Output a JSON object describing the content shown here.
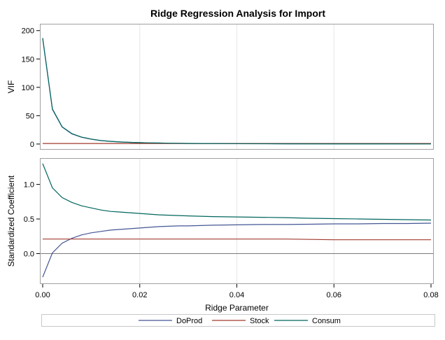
{
  "title": "Ridge Regression Analysis for Import",
  "chart_data": [
    {
      "type": "line",
      "panel": "vif",
      "ylabel": "VIF",
      "xlim": [
        0,
        0.08
      ],
      "ylim": [
        -10,
        212
      ],
      "yticks": [
        0,
        50,
        100,
        150,
        200
      ],
      "x": [
        0,
        0.002,
        0.004,
        0.006,
        0.008,
        0.01,
        0.012,
        0.014,
        0.016,
        0.018,
        0.02,
        0.022,
        0.024,
        0.026,
        0.028,
        0.03,
        0.04,
        0.05,
        0.06,
        0.07,
        0.08
      ],
      "series": [
        {
          "name": "DoProd",
          "color": "#445694",
          "values": [
            186,
            61,
            30,
            18,
            12,
            8.5,
            6,
            4.6,
            3.6,
            2.9,
            2.4,
            2.0,
            1.7,
            1.4,
            1.2,
            1.0,
            0.6,
            0.4,
            0.3,
            0.25,
            0.2
          ]
        },
        {
          "name": "Stock",
          "color": "#A23A2E",
          "values": [
            1.0,
            1.0,
            1.0,
            1.0,
            1.0,
            1.0,
            1.0,
            1.0,
            1.0,
            1.0,
            1.0,
            1.0,
            1.0,
            1.0,
            1.0,
            1.0,
            1.0,
            1.0,
            1.0,
            1.0,
            1.0
          ]
        },
        {
          "name": "Consum",
          "color": "#01665E",
          "values": [
            187,
            62,
            30.5,
            18.5,
            12.3,
            8.8,
            6.2,
            4.8,
            3.7,
            3.0,
            2.5,
            2.1,
            1.8,
            1.5,
            1.3,
            1.1,
            0.7,
            0.5,
            0.35,
            0.3,
            0.25
          ]
        }
      ]
    },
    {
      "type": "line",
      "panel": "coef",
      "ylabel": "Standardized Coefficient",
      "xlabel": "Ridge Parameter",
      "xlim": [
        0,
        0.08
      ],
      "ylim": [
        -0.44,
        1.38
      ],
      "yticks": [
        0.0,
        0.5,
        1.0
      ],
      "xticks": [
        0.0,
        0.02,
        0.04,
        0.06,
        0.08
      ],
      "reference_line_y": 0,
      "x": [
        0,
        0.002,
        0.004,
        0.006,
        0.008,
        0.01,
        0.012,
        0.014,
        0.016,
        0.018,
        0.02,
        0.022,
        0.024,
        0.026,
        0.028,
        0.03,
        0.035,
        0.04,
        0.045,
        0.05,
        0.055,
        0.06,
        0.065,
        0.07,
        0.075,
        0.08
      ],
      "series": [
        {
          "name": "DoProd",
          "color": "#445694",
          "values": [
            -0.34,
            0.01,
            0.15,
            0.22,
            0.27,
            0.3,
            0.32,
            0.34,
            0.35,
            0.36,
            0.37,
            0.38,
            0.39,
            0.395,
            0.4,
            0.4,
            0.41,
            0.415,
            0.42,
            0.42,
            0.425,
            0.43,
            0.43,
            0.435,
            0.435,
            0.44
          ]
        },
        {
          "name": "Stock",
          "color": "#A23A2E",
          "values": [
            0.21,
            0.21,
            0.21,
            0.21,
            0.21,
            0.21,
            0.21,
            0.21,
            0.21,
            0.21,
            0.21,
            0.21,
            0.21,
            0.21,
            0.21,
            0.21,
            0.21,
            0.21,
            0.21,
            0.21,
            0.205,
            0.2,
            0.2,
            0.2,
            0.2,
            0.2
          ]
        },
        {
          "name": "Consum",
          "color": "#01665E",
          "values": [
            1.3,
            0.95,
            0.81,
            0.74,
            0.69,
            0.66,
            0.63,
            0.61,
            0.6,
            0.59,
            0.58,
            0.57,
            0.56,
            0.555,
            0.55,
            0.545,
            0.535,
            0.53,
            0.525,
            0.52,
            0.51,
            0.505,
            0.5,
            0.495,
            0.49,
            0.485
          ]
        }
      ]
    }
  ],
  "legend": {
    "placement": "bottom",
    "items": [
      {
        "name": "DoProd",
        "color": "#445694"
      },
      {
        "name": "Stock",
        "color": "#A23A2E"
      },
      {
        "name": "Consum",
        "color": "#01665E"
      }
    ]
  }
}
